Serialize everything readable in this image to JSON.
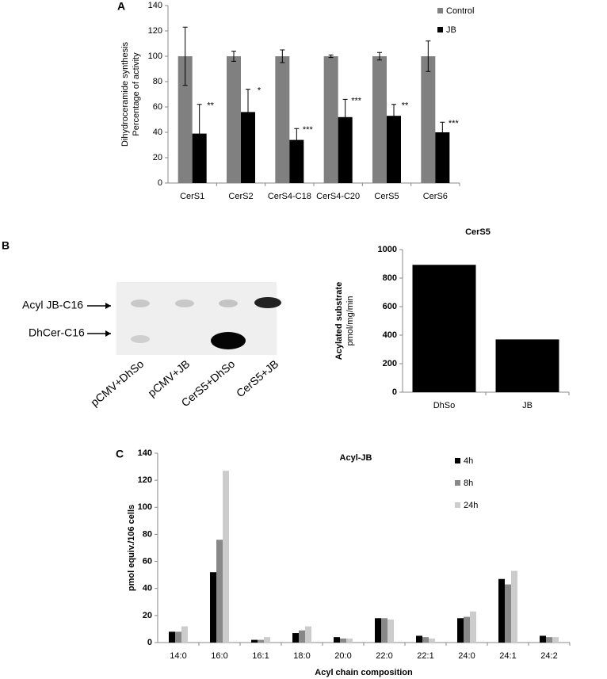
{
  "panel_labels": [
    "A",
    "B",
    "C"
  ],
  "gel": {
    "band_labels": [
      "Acyl JB-C16",
      "DhCer-C16"
    ],
    "lane_labels": [
      "pCMV+DhSo",
      "pCMV+JB",
      "CerS5+DhSo",
      "CerS5+JB"
    ]
  },
  "chart_data": [
    {
      "type": "bar",
      "ylabel": [
        "Dihydroceramide synthesis",
        "Percentage of activity"
      ],
      "categories": [
        "CerS1",
        "CerS2",
        "CerS4-C18",
        "CerS4-C20",
        "CerS5",
        "CerS6"
      ],
      "series": [
        {
          "name": "Control",
          "color": "#808080",
          "values": [
            100,
            100,
            100,
            100,
            100,
            100
          ],
          "errors": [
            23,
            4,
            5,
            1,
            3,
            12
          ]
        },
        {
          "name": "JB",
          "color": "#000000",
          "values": [
            39,
            56,
            34,
            52,
            53,
            40
          ],
          "errors": [
            23,
            18,
            9,
            14,
            9,
            8
          ]
        }
      ],
      "annotations": [
        "**",
        "*",
        "***",
        "***",
        "**",
        "***"
      ],
      "ylim": [
        0,
        140
      ],
      "yticks": [
        0,
        20,
        40,
        60,
        80,
        100,
        120,
        140
      ],
      "legend": "top-right"
    },
    {
      "type": "bar",
      "title": "CerS5",
      "ylabel": [
        "Acylated substrate",
        "pmol/mg/min"
      ],
      "categories": [
        "DhSo",
        "JB"
      ],
      "values": [
        893,
        370
      ],
      "color": "#000000",
      "ylim": [
        0,
        1000
      ],
      "yticks": [
        0,
        200,
        400,
        600,
        800,
        1000
      ]
    },
    {
      "type": "bar",
      "title": "Acyl-JB",
      "ylabel": "pmol equiv./106 cells",
      "xlabel": "Acyl chain composition",
      "categories": [
        "14:0",
        "16:0",
        "16:1",
        "18:0",
        "20:0",
        "22:0",
        "22:1",
        "24:0",
        "24:1",
        "24:2"
      ],
      "series": [
        {
          "name": "4h",
          "color": "#000000",
          "values": [
            8,
            52,
            2,
            7,
            4,
            18,
            5,
            18,
            47,
            5
          ]
        },
        {
          "name": "8h",
          "color": "#888888",
          "values": [
            8,
            76,
            2,
            9,
            3,
            18,
            4,
            19,
            43,
            4
          ]
        },
        {
          "name": "24h",
          "color": "#cccccc",
          "values": [
            12,
            127,
            4,
            12,
            3,
            17,
            3,
            23,
            53,
            4
          ]
        }
      ],
      "ylim": [
        0,
        140
      ],
      "yticks": [
        0,
        20,
        40,
        60,
        80,
        100,
        120,
        140
      ],
      "legend": "top-right"
    }
  ]
}
